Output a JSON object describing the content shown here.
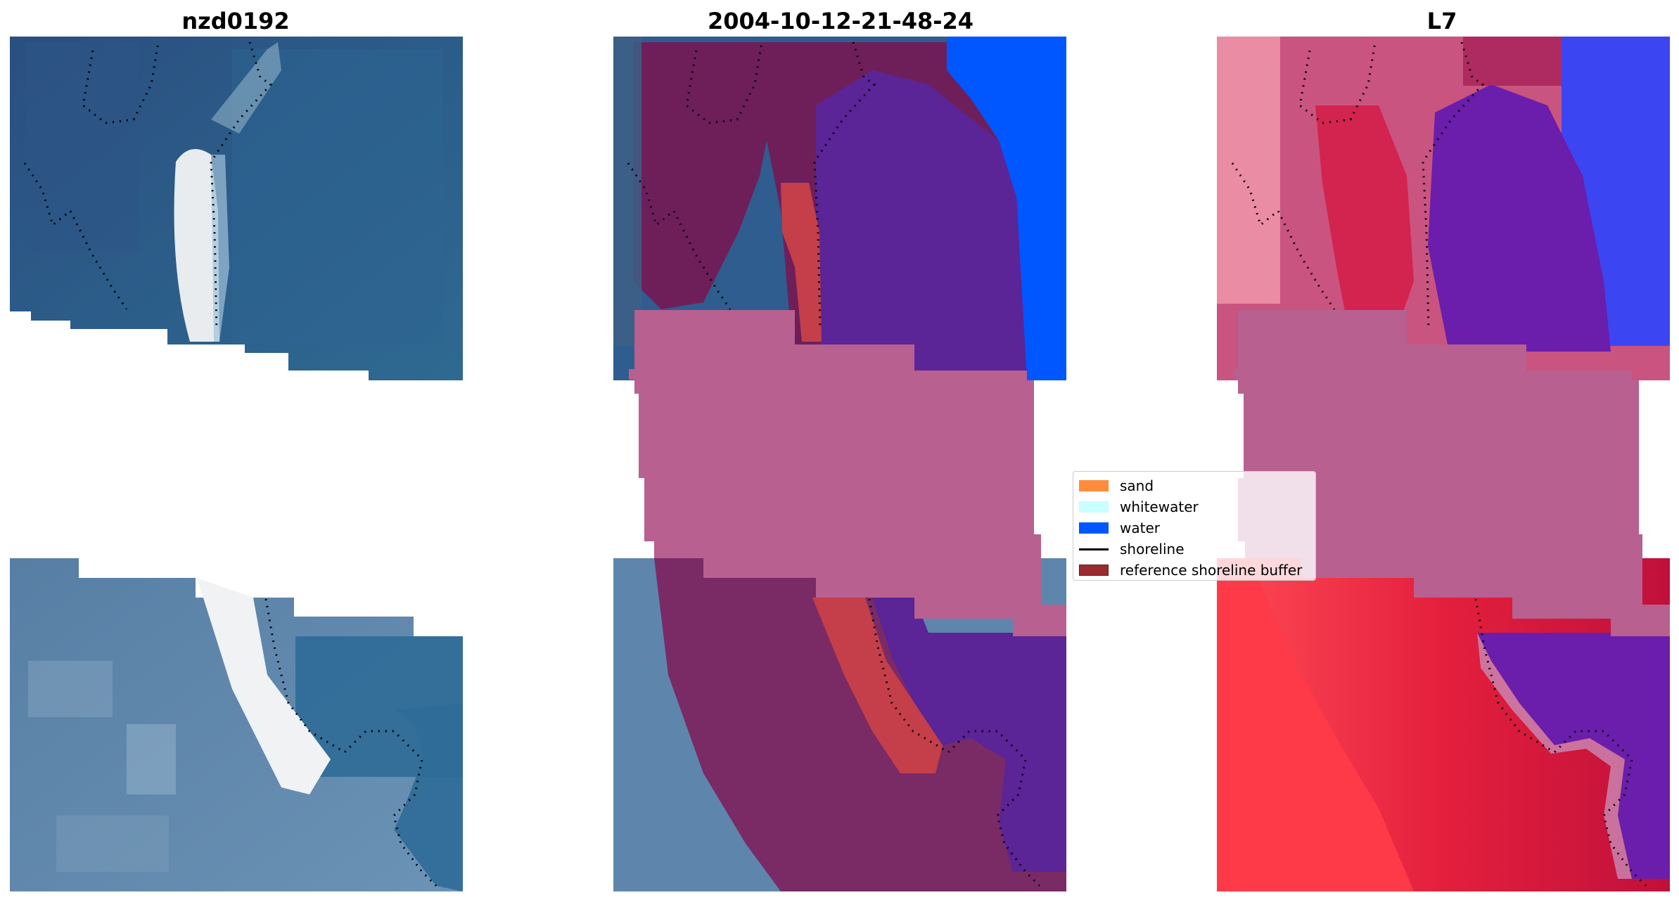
{
  "titles": {
    "left": "nzd0192",
    "center": "2004-10-12-21-48-24",
    "right": "L7"
  },
  "legend": {
    "items": [
      {
        "label": "sand",
        "kind": "patch",
        "color": "#ff8c3b"
      },
      {
        "label": "whitewater",
        "kind": "patch",
        "color": "#c8ffff"
      },
      {
        "label": "water",
        "kind": "patch",
        "color": "#0057ff"
      },
      {
        "label": "shoreline",
        "kind": "line",
        "color": "#000000"
      },
      {
        "label": "reference shoreline buffer",
        "kind": "patch",
        "color": "#9b2a30"
      }
    ]
  },
  "colors": {
    "ocean_blue": "#2f5d8f",
    "classified_water": "#0057ff",
    "buffer_magenta": "#b8608f",
    "land_purple": "#6e1f5a",
    "sea_purple": "#5b2497",
    "index_red": "#d01b3f",
    "index_pink": "#c9547f"
  },
  "icons": {
    "shoreline": "dotted-line-icon"
  }
}
